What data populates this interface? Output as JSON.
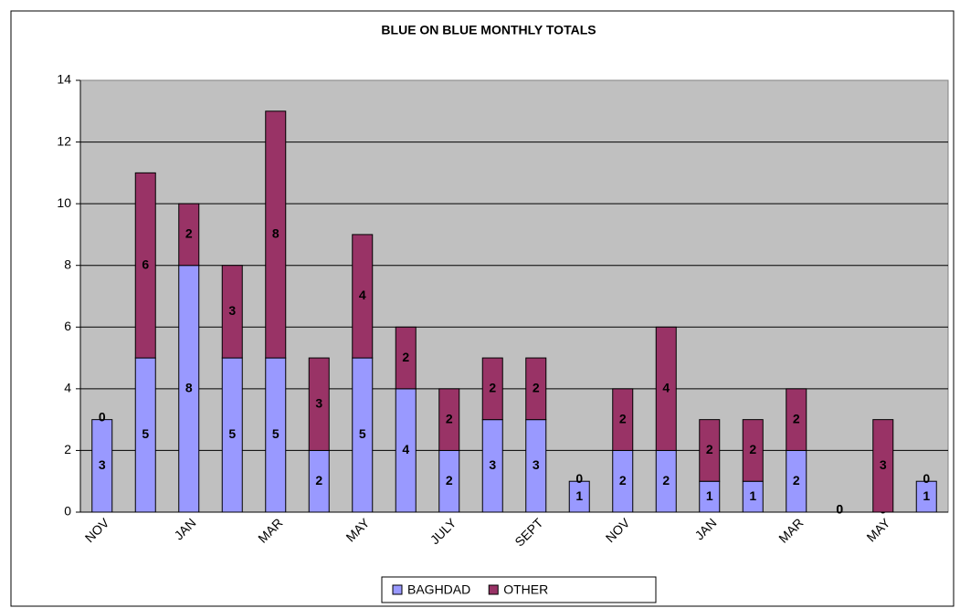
{
  "chart_data": {
    "type": "bar",
    "stacked": true,
    "title": "BLUE ON BLUE MONTHLY TOTALS",
    "categories": [
      "NOV",
      null,
      "JAN",
      null,
      "MAR",
      null,
      "MAY",
      null,
      "JULY",
      null,
      "SEPT",
      null,
      "NOV",
      null,
      "JAN",
      null,
      "MAR",
      null,
      "MAY",
      null
    ],
    "series": [
      {
        "name": "BAGHDAD",
        "color": "#9999ff",
        "values": [
          3,
          5,
          8,
          5,
          5,
          2,
          5,
          4,
          2,
          3,
          3,
          1,
          2,
          2,
          1,
          1,
          2,
          0,
          0,
          1
        ]
      },
      {
        "name": "OTHER",
        "color": "#993366",
        "values": [
          0,
          6,
          2,
          3,
          8,
          3,
          4,
          2,
          2,
          2,
          2,
          0,
          2,
          4,
          2,
          2,
          2,
          0,
          3,
          0
        ]
      }
    ],
    "ylim": [
      0,
      14
    ],
    "yticks": [
      0,
      2,
      4,
      6,
      8,
      10,
      12,
      14
    ],
    "grid": true,
    "legend": "bottom"
  }
}
